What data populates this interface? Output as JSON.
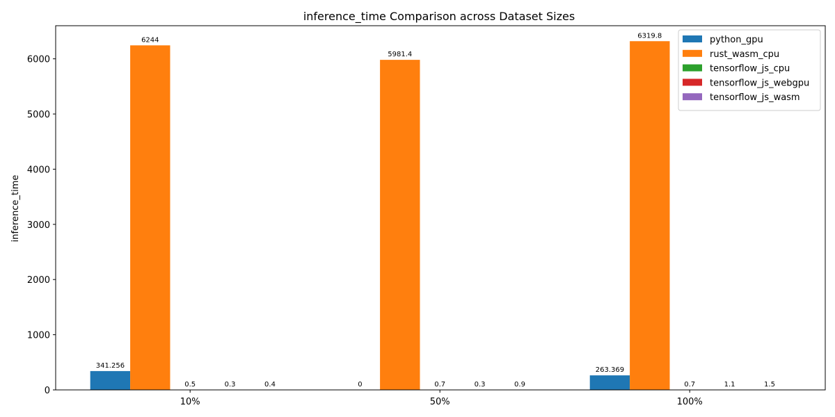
{
  "chart_data": {
    "type": "bar",
    "title": "inference_time Comparison across Dataset Sizes",
    "xlabel": "",
    "ylabel": "inference_time",
    "categories": [
      "10%",
      "50%",
      "100%"
    ],
    "ylim": [
      0,
      6600
    ],
    "yticks": [
      0,
      1000,
      2000,
      3000,
      4000,
      5000,
      6000
    ],
    "grid": false,
    "legend_position": "top-right",
    "series": [
      {
        "name": "python_gpu",
        "color": "#1f77b4",
        "values": [
          341.256,
          0,
          263.369
        ],
        "labels": [
          "341.256",
          "0",
          "263.369"
        ]
      },
      {
        "name": "rust_wasm_cpu",
        "color": "#ff7f0e",
        "values": [
          6244,
          5981.4,
          6319.8
        ],
        "labels": [
          "6244",
          "5981.4",
          "6319.8"
        ]
      },
      {
        "name": "tensorflow_js_cpu",
        "color": "#2ca02c",
        "values": [
          0.5,
          0.7,
          0.7
        ],
        "labels": [
          "0.5",
          "0.7",
          "0.7"
        ]
      },
      {
        "name": "tensorflow_js_webgpu",
        "color": "#d62728",
        "values": [
          0.3,
          0.3,
          1.1
        ],
        "labels": [
          "0.3",
          "0.3",
          "1.1"
        ]
      },
      {
        "name": "tensorflow_js_wasm",
        "color": "#9467bd",
        "values": [
          0.4,
          0.9,
          1.5
        ],
        "labels": [
          "0.4",
          "0.9",
          "1.5"
        ]
      }
    ]
  }
}
